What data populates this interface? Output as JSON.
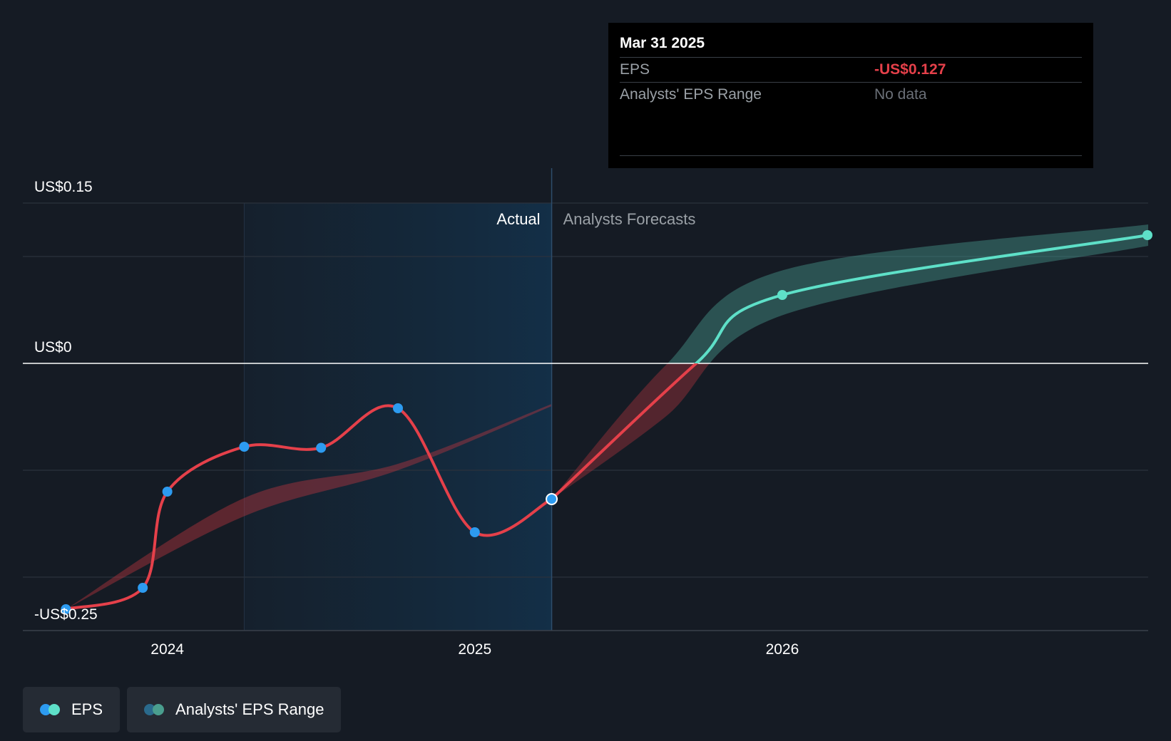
{
  "chart_data": {
    "type": "line",
    "title": "",
    "y_unit": "US$",
    "y_ticks": [
      {
        "value": 0.15,
        "label": "US$0.15"
      },
      {
        "value": 0,
        "label": "US$0"
      },
      {
        "value": -0.25,
        "label": "-US$0.25"
      }
    ],
    "ylim": [
      -0.25,
      0.15
    ],
    "xlim": [
      2023.53,
      2027.19
    ],
    "x_ticks": [
      {
        "value": 2024.0,
        "label": "2024"
      },
      {
        "value": 2025.0,
        "label": "2025"
      },
      {
        "value": 2026.0,
        "label": "2026"
      }
    ],
    "past_region_start": 2024.25,
    "forecast_divider": 2025.25,
    "region_labels": {
      "actual": "Actual",
      "forecast": "Analysts Forecasts"
    },
    "series": [
      {
        "name": "EPS (actual)",
        "color": "#e5404a",
        "x": [
          2023.67,
          2023.92,
          2024.0,
          2024.25,
          2024.5,
          2024.75,
          2025.0,
          2025.25
        ],
        "y": [
          -0.23,
          -0.21,
          -0.12,
          -0.078,
          -0.079,
          -0.042,
          -0.158,
          -0.127
        ]
      },
      {
        "name": "EPS (forecast)",
        "color_negative": "#e5404a",
        "color_positive": "#5ee0c8",
        "x": [
          2025.25,
          2025.72,
          2026.0,
          2027.19
        ],
        "y": [
          -0.127,
          0.0,
          0.064,
          0.12
        ]
      }
    ],
    "analyst_range_past": {
      "x": [
        2023.67,
        2024.25,
        2024.75,
        2025.25
      ],
      "upper": [
        -0.23,
        -0.126,
        -0.094,
        -0.038
      ],
      "lower": [
        -0.23,
        -0.143,
        -0.1,
        -0.04
      ]
    },
    "analyst_range_forecast": {
      "x": [
        2025.25,
        2025.62,
        2026.0,
        2027.19
      ],
      "upper": [
        -0.127,
        -0.002,
        0.087,
        0.13
      ],
      "lower": [
        -0.127,
        -0.05,
        0.045,
        0.11
      ]
    },
    "highlight_point": {
      "x": 2025.25,
      "y": -0.127
    },
    "tooltip": {
      "date": "Mar 31 2025",
      "rows": [
        {
          "label": "EPS",
          "value": "-US$0.127"
        },
        {
          "label": "Analysts' EPS Range",
          "value": "No data"
        }
      ]
    },
    "legend": [
      {
        "label": "EPS",
        "colors": [
          "#2d9bf0",
          "#5ee0c8"
        ]
      },
      {
        "label": "Analysts' EPS Range",
        "colors": [
          "#2a6a8c",
          "#4a9e8e"
        ]
      }
    ]
  }
}
